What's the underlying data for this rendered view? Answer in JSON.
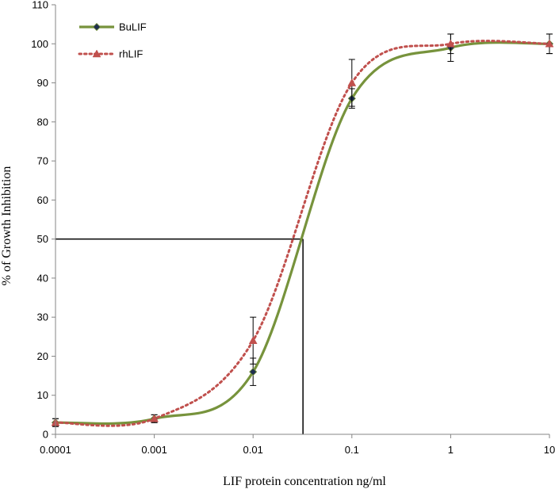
{
  "chart_data": {
    "type": "line",
    "xlabel": "LIF protein concentration ng/ml",
    "ylabel": "% of Growth Inhibition",
    "x_scale": "log",
    "xlim": [
      0.0001,
      10
    ],
    "ylim": [
      0,
      110
    ],
    "x_ticks": [
      "0.0001",
      "0.001",
      "0.01",
      "0.1",
      "1",
      "10"
    ],
    "y_ticks": [
      "0",
      "10",
      "20",
      "30",
      "40",
      "50",
      "60",
      "70",
      "80",
      "90",
      "100",
      "110"
    ],
    "legend_position": "top-left",
    "grid": false,
    "series": [
      {
        "name": "BuLIF",
        "color": "#77933C",
        "line_style": "solid",
        "marker": "diamond",
        "x": [
          0.0001,
          0.001,
          0.01,
          0.1,
          1,
          10
        ],
        "y": [
          3,
          4,
          16,
          86,
          99,
          100
        ],
        "error": [
          1,
          1,
          3.5,
          2.5,
          3.5,
          2.5
        ]
      },
      {
        "name": "rhLIF",
        "color": "#C0504D",
        "line_style": "dotted",
        "marker": "triangle",
        "x": [
          0.0001,
          0.001,
          0.01,
          0.1,
          1,
          10
        ],
        "y": [
          3,
          4,
          24,
          90,
          100,
          100
        ],
        "error": [
          1,
          1,
          6,
          6,
          2.5,
          2.5
        ]
      }
    ],
    "reference_lines": {
      "y": 50,
      "x": 0.032
    }
  }
}
